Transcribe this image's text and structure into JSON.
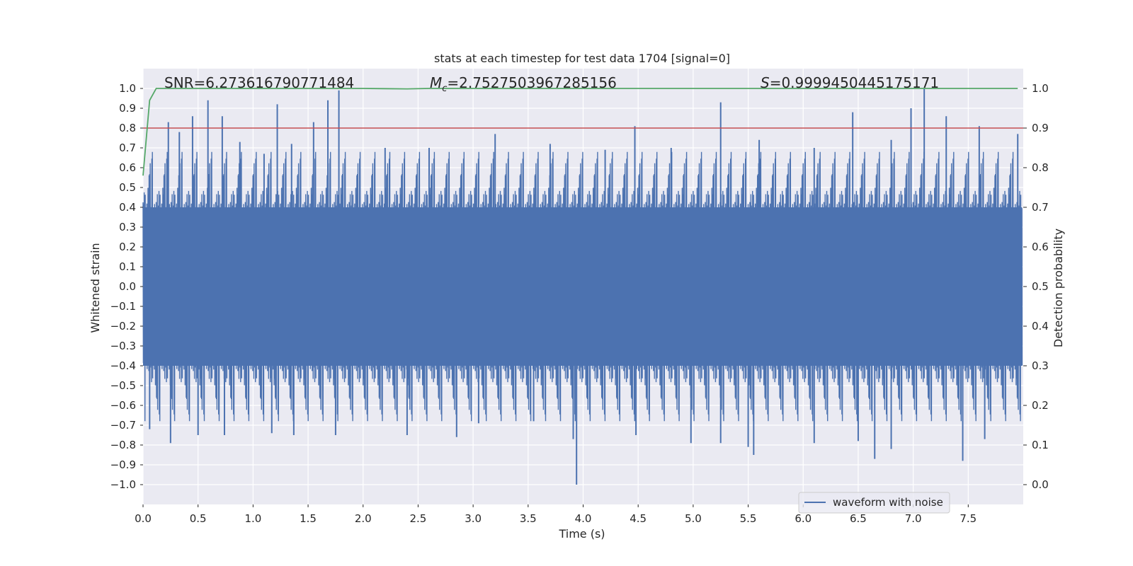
{
  "chart_data": {
    "type": "line",
    "title": "stats at each timestep for test data 1704 [signal=0]",
    "xlabel": "Time (s)",
    "ylabel": "Whitened strain",
    "y2label": "Detection probability",
    "xlim": [
      0.0,
      8.0
    ],
    "ylim": [
      -1.1,
      1.1
    ],
    "y2lim": [
      -0.05,
      1.05
    ],
    "xticks": [
      0.0,
      0.5,
      1.0,
      1.5,
      2.0,
      2.5,
      3.0,
      3.5,
      4.0,
      4.5,
      5.0,
      5.5,
      6.0,
      6.5,
      7.0,
      7.5
    ],
    "xtick_labels": [
      "0.0",
      "0.5",
      "1.0",
      "1.5",
      "2.0",
      "2.5",
      "3.0",
      "3.5",
      "4.0",
      "4.5",
      "5.0",
      "5.5",
      "6.0",
      "6.5",
      "7.0",
      "7.5"
    ],
    "yticks": [
      1.0,
      0.9,
      0.8,
      0.7,
      0.6,
      0.5,
      0.4,
      0.3,
      0.2,
      0.1,
      0.0,
      -0.1,
      -0.2,
      -0.3,
      -0.4,
      -0.5,
      -0.6,
      -0.7,
      -0.8,
      -0.9,
      -1.0
    ],
    "ytick_labels": [
      "1.0",
      "0.9",
      "0.8",
      "0.7",
      "0.6",
      "0.5",
      "0.4",
      "0.3",
      "0.2",
      "0.1",
      "0.0",
      "−0.1",
      "−0.2",
      "−0.3",
      "−0.4",
      "−0.5",
      "−0.6",
      "−0.7",
      "−0.8",
      "−0.9",
      "−1.0"
    ],
    "y2ticks": [
      1.0,
      0.9,
      0.8,
      0.7,
      0.6,
      0.5,
      0.4,
      0.3,
      0.2,
      0.1,
      0.0
    ],
    "y2tick_labels": [
      "1.0",
      "0.9",
      "0.8",
      "0.7",
      "0.6",
      "0.5",
      "0.4",
      "0.3",
      "0.2",
      "0.1",
      "0.0"
    ],
    "annotations": {
      "snr": "SNR=6.273616790771484",
      "mc_sym": "M",
      "mc_sub": "c",
      "mc_val": "=2.7527503967285156",
      "s_sym": "S",
      "s_val": "=0.9999450445175171"
    },
    "legend": {
      "label": "waveform with noise",
      "location": "lower-right"
    },
    "threshold": {
      "value": 0.9,
      "axis": "y2",
      "color": "#c44e52"
    },
    "colors": {
      "waveform": "#4c72b0",
      "probability": "#55a868",
      "threshold": "#c44e52",
      "background": "#eaeaf2",
      "grid": "#ffffff"
    },
    "waveform": {
      "name": "waveform with noise",
      "x_range": [
        0.0,
        7.99
      ],
      "core_band": [
        -0.4,
        0.4
      ],
      "positive_spikes": [
        {
          "x": 0.23,
          "y": 0.83
        },
        {
          "x": 0.33,
          "y": 0.78
        },
        {
          "x": 0.45,
          "y": 0.86
        },
        {
          "x": 0.59,
          "y": 0.94
        },
        {
          "x": 0.72,
          "y": 0.86
        },
        {
          "x": 0.88,
          "y": 0.73
        },
        {
          "x": 1.1,
          "y": 0.67
        },
        {
          "x": 1.22,
          "y": 0.92
        },
        {
          "x": 1.35,
          "y": 0.72
        },
        {
          "x": 1.55,
          "y": 0.83
        },
        {
          "x": 1.68,
          "y": 0.94
        },
        {
          "x": 1.78,
          "y": 0.99
        },
        {
          "x": 2.2,
          "y": 0.7
        },
        {
          "x": 2.6,
          "y": 0.7
        },
        {
          "x": 3.2,
          "y": 0.77
        },
        {
          "x": 3.7,
          "y": 0.72
        },
        {
          "x": 4.2,
          "y": 0.69
        },
        {
          "x": 4.47,
          "y": 0.81
        },
        {
          "x": 4.8,
          "y": 0.7
        },
        {
          "x": 5.25,
          "y": 0.93
        },
        {
          "x": 5.6,
          "y": 0.74
        },
        {
          "x": 6.1,
          "y": 0.7
        },
        {
          "x": 6.45,
          "y": 0.88
        },
        {
          "x": 6.8,
          "y": 0.74
        },
        {
          "x": 6.98,
          "y": 0.9
        },
        {
          "x": 7.1,
          "y": 1.0
        },
        {
          "x": 7.3,
          "y": 0.86
        },
        {
          "x": 7.6,
          "y": 0.81
        },
        {
          "x": 7.95,
          "y": 0.77
        }
      ],
      "negative_spikes": [
        {
          "x": 0.06,
          "y": -0.72
        },
        {
          "x": 0.25,
          "y": -0.79
        },
        {
          "x": 0.5,
          "y": -0.75
        },
        {
          "x": 0.74,
          "y": -0.75
        },
        {
          "x": 1.17,
          "y": -0.74
        },
        {
          "x": 1.37,
          "y": -0.75
        },
        {
          "x": 1.75,
          "y": -0.75
        },
        {
          "x": 2.4,
          "y": -0.75
        },
        {
          "x": 2.85,
          "y": -0.76
        },
        {
          "x": 3.05,
          "y": -0.69
        },
        {
          "x": 3.55,
          "y": -0.68
        },
        {
          "x": 3.91,
          "y": -0.77
        },
        {
          "x": 3.94,
          "y": -1.0
        },
        {
          "x": 4.48,
          "y": -0.75
        },
        {
          "x": 4.98,
          "y": -0.79
        },
        {
          "x": 5.25,
          "y": -0.79
        },
        {
          "x": 5.5,
          "y": -0.81
        },
        {
          "x": 5.55,
          "y": -0.85
        },
        {
          "x": 6.1,
          "y": -0.79
        },
        {
          "x": 6.5,
          "y": -0.78
        },
        {
          "x": 6.65,
          "y": -0.87
        },
        {
          "x": 6.8,
          "y": -0.82
        },
        {
          "x": 7.45,
          "y": -0.88
        },
        {
          "x": 7.65,
          "y": -0.77
        }
      ]
    },
    "probability": {
      "x": [
        0.0,
        0.06,
        0.12,
        0.5,
        1.0,
        1.5,
        2.0,
        2.2,
        2.4,
        2.6,
        3.0,
        4.0,
        5.0,
        6.0,
        7.0,
        7.95
      ],
      "y": [
        0.78,
        0.97,
        1.0,
        1.0,
        1.0,
        1.0,
        1.0,
        0.9995,
        0.999,
        1.0,
        1.0,
        1.0,
        1.0,
        1.0,
        1.0,
        1.0
      ]
    }
  }
}
